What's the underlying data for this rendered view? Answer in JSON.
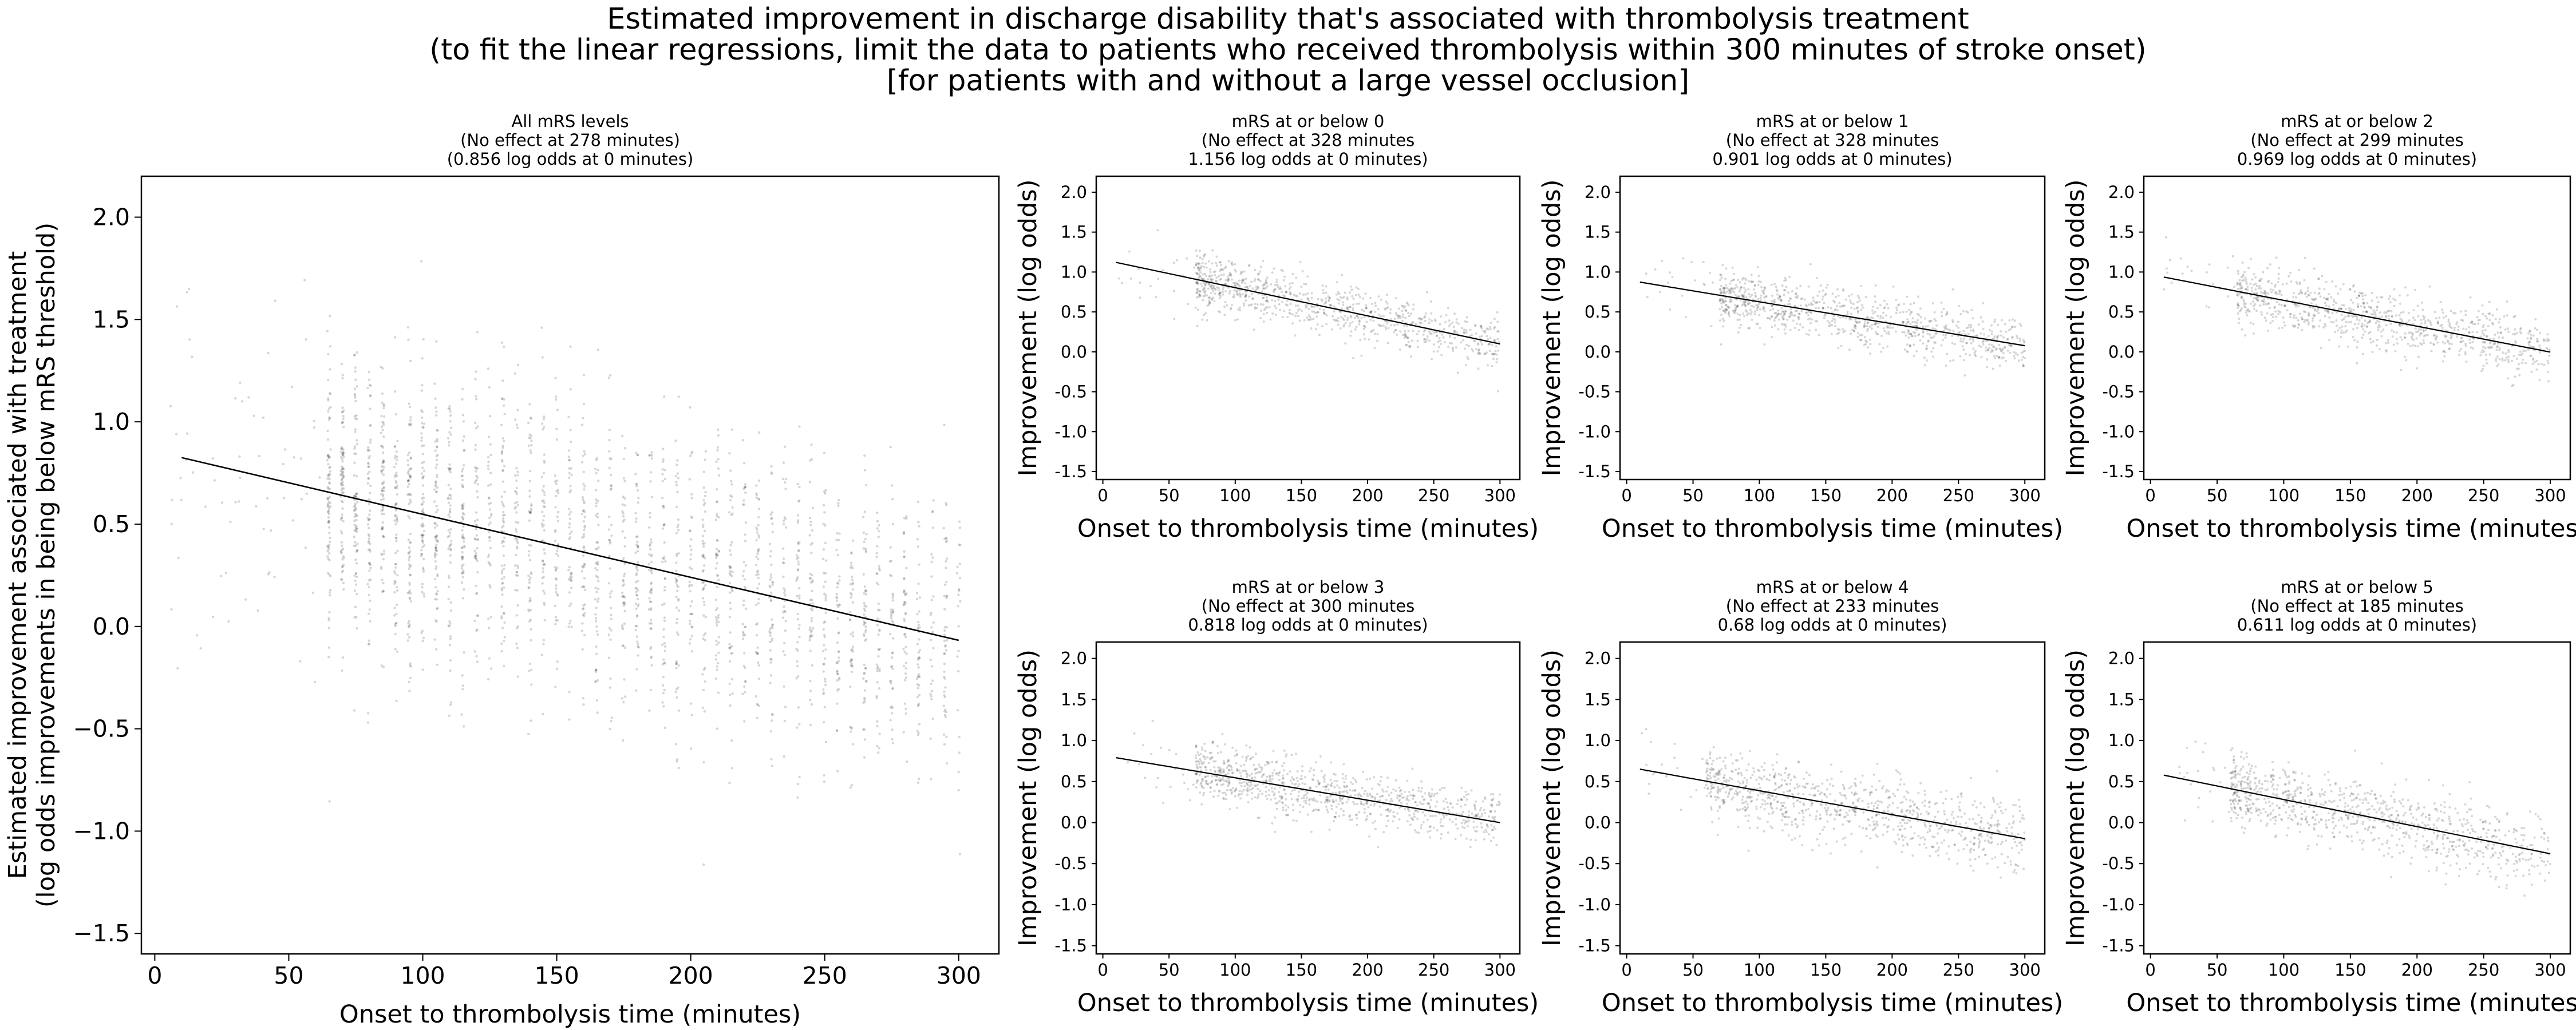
{
  "figure": {
    "title_lines": [
      "Estimated improvement in discharge disability that's associated with thrombolysis treatment",
      "(to fit the linear regressions, limit the data to patients who received thrombolysis within 300 minutes of stroke onset)",
      "[for patients with and without a large vessel occlusion]"
    ]
  },
  "chart_data": [
    {
      "type": "scatter",
      "title_lines": [
        "All mRS levels",
        "(No effect at 278 minutes)",
        "(0.856 log odds at 0 minutes)"
      ],
      "xlabel": "Onset to thrombolysis time (minutes)",
      "ylabel_lines": [
        "Estimated improvement associated with treatment",
        "(log odds improvements in being below mRS threshold)"
      ],
      "xlim": [
        -5,
        315
      ],
      "ylim": [
        -1.6,
        2.2
      ],
      "xticks": [
        0,
        50,
        100,
        150,
        200,
        250,
        300
      ],
      "yticks": [
        -1.5,
        -1.0,
        -0.5,
        0.0,
        0.5,
        1.0,
        1.5,
        2.0
      ],
      "ytick_labels": [
        "−1.5",
        "−1.0",
        "−0.5",
        "0.0",
        "0.5",
        "1.0",
        "1.5",
        "2.0"
      ],
      "regression": {
        "intercept": 0.856,
        "zero_at": 278,
        "x_start": 10,
        "x_end": 300
      },
      "scatter_profile": {
        "x_min": 65,
        "x_max": 300,
        "spread": 0.36,
        "sparse_x_min": 5,
        "sparse_x_max": 65,
        "n_points": 2600,
        "n_sparse": 70
      }
    },
    {
      "type": "scatter",
      "title_lines": [
        "mRS at or below 0",
        "(No effect at 328 minutes",
        "1.156 log odds at 0 minutes)"
      ],
      "xlabel": "Onset to thrombolysis time (minutes)",
      "ylabel": "Improvement (log odds)",
      "xlim": [
        -5,
        315
      ],
      "ylim": [
        -1.6,
        2.2
      ],
      "xticks": [
        0,
        50,
        100,
        150,
        200,
        250,
        300
      ],
      "yticks": [
        -1.5,
        -1.0,
        -0.5,
        0.0,
        0.5,
        1.0,
        1.5,
        2.0
      ],
      "ytick_labels": [
        "-1.5",
        "-1.0",
        "-0.5",
        "0.0",
        "0.5",
        "1.0",
        "1.5",
        "2.0"
      ],
      "regression": {
        "intercept": 1.156,
        "zero_at": 328,
        "x_start": 10,
        "x_end": 300
      },
      "scatter_profile": {
        "x_min": 70,
        "x_max": 300,
        "spread": 0.17,
        "sparse_x_min": 10,
        "sparse_x_max": 70,
        "n_points": 900,
        "n_sparse": 20
      }
    },
    {
      "type": "scatter",
      "title_lines": [
        "mRS at or below 1",
        "(No effect at 328 minutes",
        "0.901 log odds at 0 minutes)"
      ],
      "xlabel": "Onset to thrombolysis time (minutes)",
      "ylabel": "Improvement (log odds)",
      "xlim": [
        -5,
        315
      ],
      "ylim": [
        -1.6,
        2.2
      ],
      "xticks": [
        0,
        50,
        100,
        150,
        200,
        250,
        300
      ],
      "yticks": [
        -1.5,
        -1.0,
        -0.5,
        0.0,
        0.5,
        1.0,
        1.5,
        2.0
      ],
      "ytick_labels": [
        "-1.5",
        "-1.0",
        "-0.5",
        "0.0",
        "0.5",
        "1.0",
        "1.5",
        "2.0"
      ],
      "regression": {
        "intercept": 0.901,
        "zero_at": 328,
        "x_start": 10,
        "x_end": 300
      },
      "scatter_profile": {
        "x_min": 70,
        "x_max": 300,
        "spread": 0.17,
        "sparse_x_min": 10,
        "sparse_x_max": 70,
        "n_points": 900,
        "n_sparse": 20
      }
    },
    {
      "type": "scatter",
      "title_lines": [
        "mRS at or below 2",
        "(No effect at 299 minutes",
        "0.969 log odds at 0 minutes)"
      ],
      "xlabel": "Onset to thrombolysis time (minutes)",
      "ylabel": "Improvement (log odds)",
      "xlim": [
        -5,
        315
      ],
      "ylim": [
        -1.6,
        2.2
      ],
      "xticks": [
        0,
        50,
        100,
        150,
        200,
        250,
        300
      ],
      "yticks": [
        -1.5,
        -1.0,
        -0.5,
        0.0,
        0.5,
        1.0,
        1.5,
        2.0
      ],
      "ytick_labels": [
        "-1.5",
        "-1.0",
        "-0.5",
        "0.0",
        "0.5",
        "1.0",
        "1.5",
        "2.0"
      ],
      "regression": {
        "intercept": 0.969,
        "zero_at": 299,
        "x_start": 10,
        "x_end": 300
      },
      "scatter_profile": {
        "x_min": 65,
        "x_max": 300,
        "spread": 0.19,
        "sparse_x_min": 10,
        "sparse_x_max": 65,
        "n_points": 900,
        "n_sparse": 20
      }
    },
    {
      "type": "scatter",
      "title_lines": [
        "mRS at or below 3",
        "(No effect at 300 minutes",
        "0.818 log odds at 0 minutes)"
      ],
      "xlabel": "Onset to thrombolysis time (minutes)",
      "ylabel": "Improvement (log odds)",
      "xlim": [
        -5,
        315
      ],
      "ylim": [
        -1.6,
        2.2
      ],
      "xticks": [
        0,
        50,
        100,
        150,
        200,
        250,
        300
      ],
      "yticks": [
        -1.5,
        -1.0,
        -0.5,
        0.0,
        0.5,
        1.0,
        1.5,
        2.0
      ],
      "ytick_labels": [
        "-1.5",
        "-1.0",
        "-0.5",
        "0.0",
        "0.5",
        "1.0",
        "1.5",
        "2.0"
      ],
      "regression": {
        "intercept": 0.818,
        "zero_at": 300,
        "x_start": 10,
        "x_end": 300
      },
      "scatter_profile": {
        "x_min": 70,
        "x_max": 300,
        "spread": 0.18,
        "sparse_x_min": 10,
        "sparse_x_max": 70,
        "n_points": 900,
        "n_sparse": 20
      }
    },
    {
      "type": "scatter",
      "title_lines": [
        "mRS at or below 4",
        "(No effect at 233 minutes",
        "0.68 log odds at 0 minutes)"
      ],
      "xlabel": "Onset to thrombolysis time (minutes)",
      "ylabel": "Improvement (log odds)",
      "xlim": [
        -5,
        315
      ],
      "ylim": [
        -1.6,
        2.2
      ],
      "xticks": [
        0,
        50,
        100,
        150,
        200,
        250,
        300
      ],
      "yticks": [
        -1.5,
        -1.0,
        -0.5,
        0.0,
        0.5,
        1.0,
        1.5,
        2.0
      ],
      "ytick_labels": [
        "-1.5",
        "-1.0",
        "-0.5",
        "0.0",
        "0.5",
        "1.0",
        "1.5",
        "2.0"
      ],
      "regression": {
        "intercept": 0.68,
        "zero_at": 233,
        "x_start": 10,
        "x_end": 300
      },
      "scatter_profile": {
        "x_min": 60,
        "x_max": 300,
        "spread": 0.22,
        "sparse_x_min": 10,
        "sparse_x_max": 60,
        "n_points": 900,
        "n_sparse": 20
      }
    },
    {
      "type": "scatter",
      "title_lines": [
        "mRS at or below 5",
        "(No effect at 185 minutes",
        "0.611 log odds at 0 minutes)"
      ],
      "xlabel": "Onset to thrombolysis time (minutes)",
      "ylabel": "Improvement (log odds)",
      "xlim": [
        -5,
        315
      ],
      "ylim": [
        -1.6,
        2.2
      ],
      "xticks": [
        0,
        50,
        100,
        150,
        200,
        250,
        300
      ],
      "yticks": [
        -1.5,
        -1.0,
        -0.5,
        0.0,
        0.5,
        1.0,
        1.5,
        2.0
      ],
      "ytick_labels": [
        "-1.5",
        "-1.0",
        "-0.5",
        "0.0",
        "0.5",
        "1.0",
        "1.5",
        "2.0"
      ],
      "regression": {
        "intercept": 0.611,
        "zero_at": 185,
        "x_start": 10,
        "x_end": 300
      },
      "scatter_profile": {
        "x_min": 60,
        "x_max": 300,
        "spread": 0.22,
        "sparse_x_min": 10,
        "sparse_x_max": 60,
        "n_points": 900,
        "n_sparse": 20
      }
    }
  ]
}
